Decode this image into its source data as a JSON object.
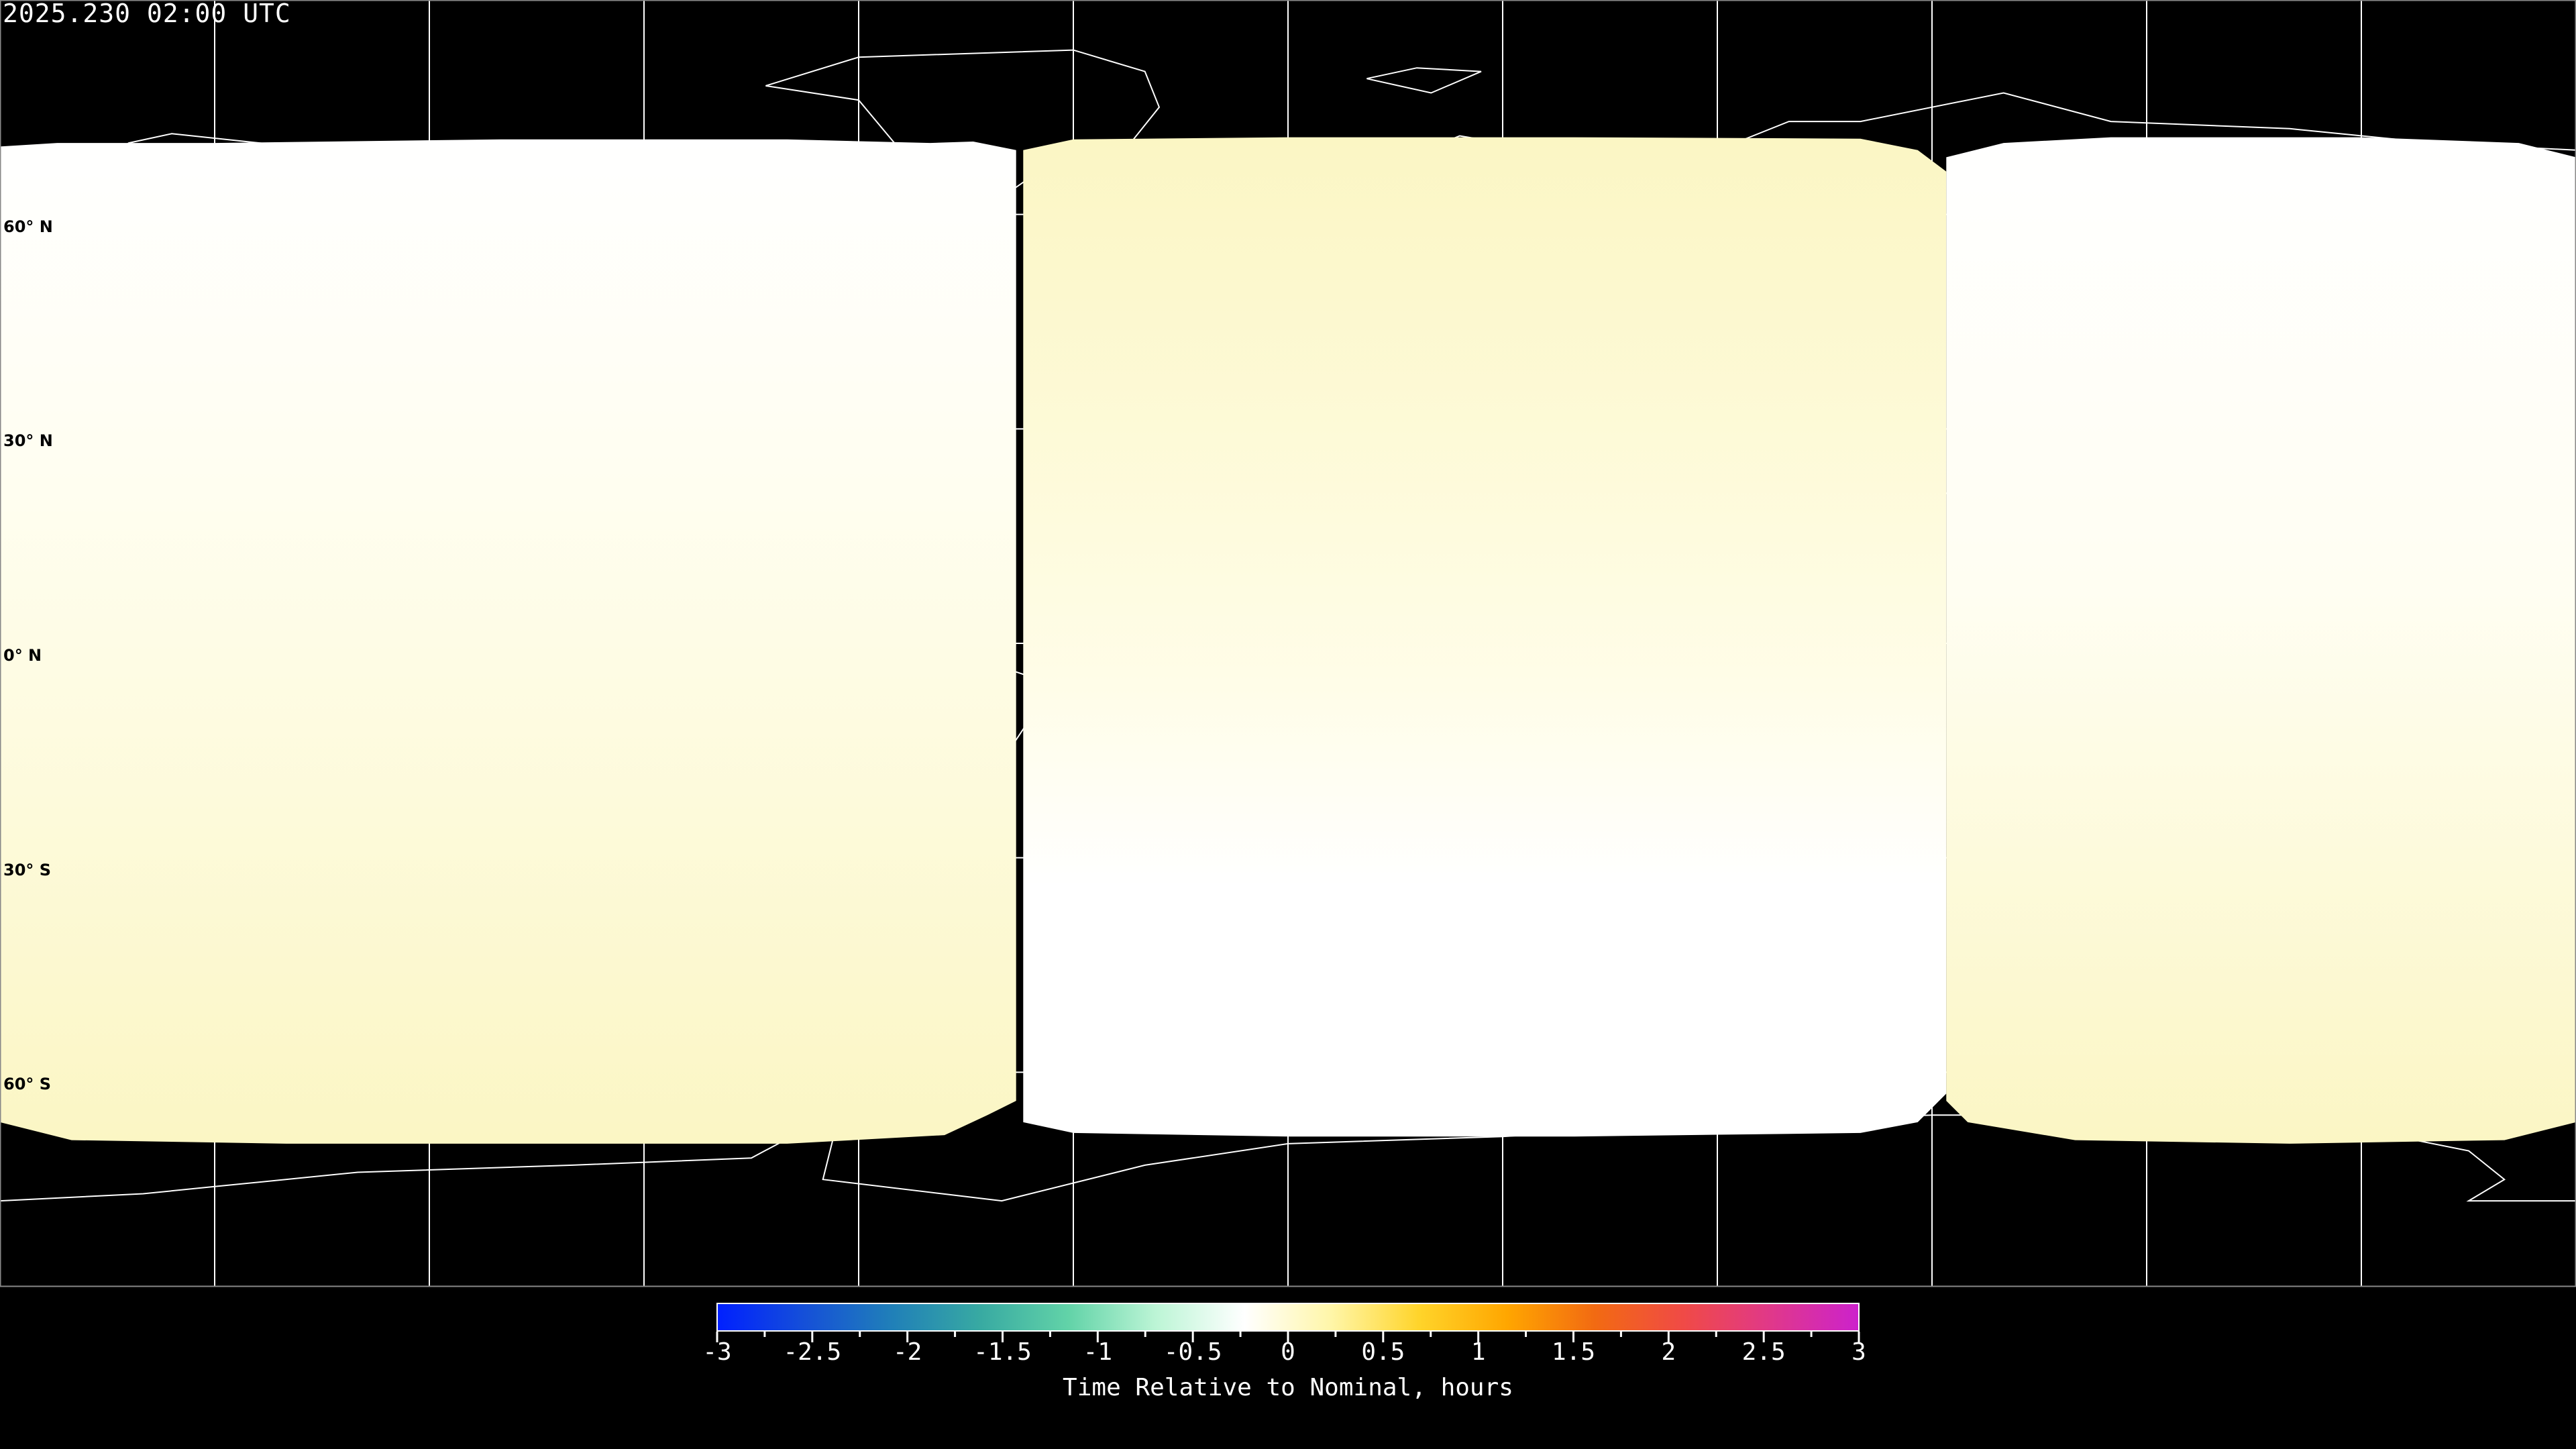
{
  "title": "2025.230 02:00 UTC",
  "map": {
    "projection": "equirectangular",
    "lon_range": [
      -180,
      180
    ],
    "lat_range": [
      -90,
      90
    ],
    "grid_lons": [
      -150,
      -120,
      -90,
      -60,
      -30,
      0,
      30,
      60,
      90,
      120,
      150
    ],
    "grid_lats": [
      60,
      30,
      0,
      -30,
      -60
    ],
    "lat_labels": [
      "60° N",
      "30° N",
      "0° N",
      "30° S",
      "60° S"
    ],
    "background_color": "#000000",
    "coverage_color_positive": "#fbf6c4",
    "coverage_color_zero": "#ffffff"
  },
  "colorbar": {
    "label": "Time Relative to Nominal, hours",
    "min": -3,
    "max": 3,
    "tick_labels": [
      "-3",
      "-2.5",
      "-2",
      "-1.5",
      "-1",
      "-0.5",
      "0",
      "0.5",
      "1",
      "1.5",
      "2",
      "2.5",
      "3"
    ],
    "colors": [
      "#0020ff",
      "#1550d8",
      "#2080b8",
      "#38aaa2",
      "#62d3a8",
      "#bdf5d6",
      "#ffffff",
      "#fff6a8",
      "#ffd42a",
      "#ffa600",
      "#f26a12",
      "#f04a46",
      "#e0388a",
      "#cc22cc"
    ]
  }
}
